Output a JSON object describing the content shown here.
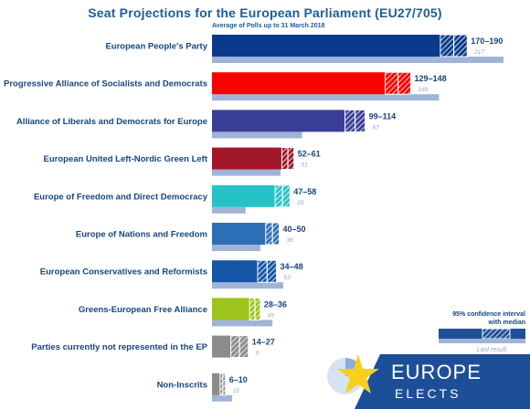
{
  "chart_data": {
    "type": "bar",
    "title": "Seat Projections for the European Parliament (EU27/705)",
    "subtitle": "Average of Polls up to 31 March 2018",
    "categories": [
      "European People's Party",
      "Progressive Alliance of Socialists and Democrats",
      "Alliance of Liberals and Democrats for Europe",
      "European United Left-Nordic Green Left",
      "Europe of Freedom and Direct Democracy",
      "Europe of Nations and Freedom",
      "European Conservatives and Reformists",
      "Greens-European Free Alliance",
      "Parties currently not represented in the EP",
      "Non-Inscrits"
    ],
    "ci_low": [
      170,
      129,
      99,
      52,
      47,
      40,
      34,
      28,
      14,
      6
    ],
    "ci_high": [
      190,
      148,
      114,
      61,
      58,
      50,
      48,
      36,
      27,
      10
    ],
    "range_labels": [
      "170–190",
      "129–148",
      "99–114",
      "52–61",
      "47–58",
      "40–50",
      "34–48",
      "28–36",
      "14–27",
      "6–10"
    ],
    "last_result": [
      217,
      169,
      67,
      51,
      25,
      36,
      53,
      45,
      0,
      15
    ],
    "colors": [
      "#0a3a8c",
      "#ff0000",
      "#3a3e96",
      "#a3162a",
      "#27c2c8",
      "#2d6fb7",
      "#1656a8",
      "#9dc41a",
      "#8c8c8c",
      "#8c8c8c"
    ],
    "last_color": "#9fb4d6",
    "xlim": [
      0,
      220
    ],
    "legend": {
      "ci_label": "95% confidence interval",
      "median_label": "with median",
      "last_label": "Last result",
      "placement": "bottom-right"
    }
  },
  "logo": {
    "line1": "EUROPE",
    "line2": "ELECTS"
  }
}
